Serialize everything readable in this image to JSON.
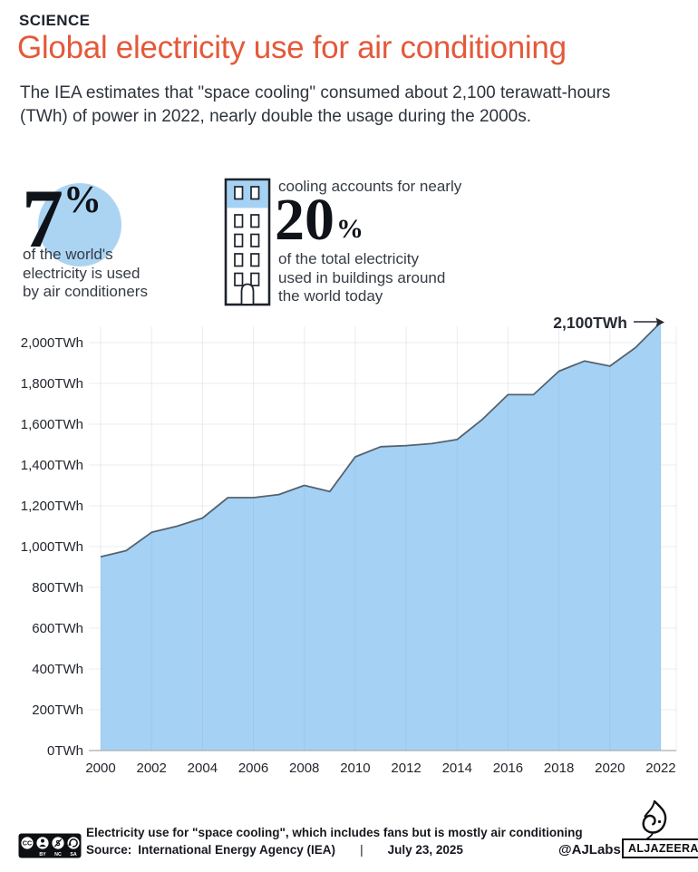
{
  "header": {
    "kicker": "SCIENCE",
    "title": "Global electricity use for air conditioning",
    "subtitle_line1": "The IEA estimates that \"space cooling\" consumed about 2,100 terawatt-hours",
    "subtitle_line2": "(TWh) of power in 2022, nearly double the usage during the 2000s."
  },
  "stats": {
    "left": {
      "value": "7",
      "pct": "%",
      "caption_lines": [
        "of the world's",
        "electricity is used",
        "by air conditioners"
      ]
    },
    "right": {
      "intro": "cooling accounts for nearly",
      "value": "20",
      "pct": "%",
      "caption_lines": [
        "of the total electricity",
        "used in buildings around",
        "the world today"
      ]
    },
    "accent_blue": "#abd4f3"
  },
  "chart_data": {
    "type": "area",
    "title": "Global electricity use for air conditioning",
    "xlabel": "",
    "ylabel": "TWh",
    "years": [
      2000,
      2001,
      2002,
      2003,
      2004,
      2005,
      2006,
      2007,
      2008,
      2009,
      2010,
      2011,
      2012,
      2013,
      2014,
      2015,
      2016,
      2017,
      2018,
      2019,
      2020,
      2021,
      2022
    ],
    "values": [
      950,
      980,
      1070,
      1100,
      1140,
      1240,
      1240,
      1255,
      1300,
      1270,
      1440,
      1490,
      1495,
      1505,
      1525,
      1625,
      1745,
      1745,
      1860,
      1910,
      1885,
      1975,
      2100
    ],
    "ylim": [
      0,
      2100
    ],
    "y_tick_values": [
      0,
      200,
      400,
      600,
      800,
      1000,
      1200,
      1400,
      1600,
      1800,
      2000
    ],
    "y_tick_labels": [
      "0TWh",
      "200TWh",
      "400TWh",
      "600TWh",
      "800TWh",
      "1,000TWh",
      "1,200TWh",
      "1,400TWh",
      "1,600TWh",
      "1,800TWh",
      "2,000TWh"
    ],
    "x_tick_values": [
      2000,
      2002,
      2004,
      2006,
      2008,
      2010,
      2012,
      2014,
      2016,
      2018,
      2020,
      2022
    ],
    "x_tick_labels": [
      "2000",
      "2002",
      "2004",
      "2006",
      "2008",
      "2010",
      "2012",
      "2014",
      "2016",
      "2018",
      "2020",
      "2022"
    ],
    "annotation": "2,100TWh",
    "grid": true,
    "legend": "none",
    "area_color": "#a5d2f4",
    "line_color": "#55626f",
    "label_color": "#23272e"
  },
  "footer": {
    "license_icon": "cc-by-nc-sa",
    "license_labels": [
      "BY",
      "NC",
      "SA"
    ],
    "note": "Electricity use for \"space cooling\", which includes fans but is mostly air conditioning",
    "source_label": "Source:",
    "source": "International Energy Agency (IEA)",
    "separator": "|",
    "date": "July 23, 2025",
    "credit": "@AJLabs",
    "brand": "ALJAZEERA"
  }
}
